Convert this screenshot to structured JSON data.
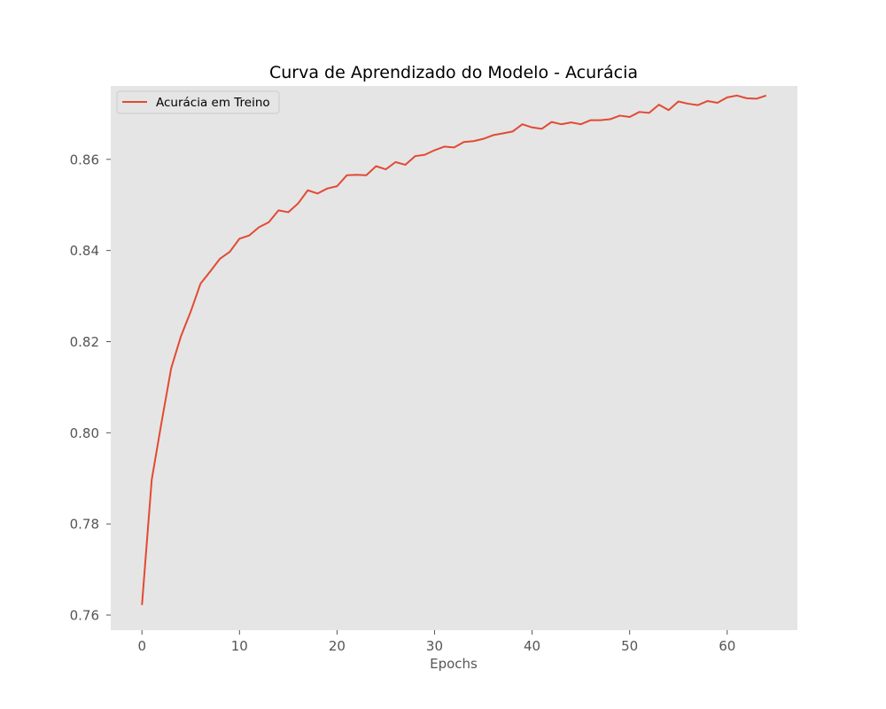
{
  "chart_data": {
    "type": "line",
    "title": "Curva de Aprendizado do Modelo - Acurácia",
    "xlabel": "Epochs",
    "ylabel": "",
    "xlim": [
      -3.2,
      67.2
    ],
    "ylim": [
      0.7567,
      0.8761
    ],
    "xticks": [
      0,
      10,
      20,
      30,
      40,
      50,
      60
    ],
    "xtick_labels": [
      "0",
      "10",
      "20",
      "30",
      "40",
      "50",
      "60"
    ],
    "yticks": [
      0.76,
      0.78,
      0.8,
      0.82,
      0.84,
      0.86
    ],
    "ytick_labels": [
      "0.76",
      "0.78",
      "0.80",
      "0.82",
      "0.84",
      "0.86"
    ],
    "grid": false,
    "legend_position": "top-left",
    "series": [
      {
        "name": "Acurácia em Treino",
        "color": "#E24A33",
        "x": [
          0,
          1,
          2,
          3,
          4,
          5,
          6,
          7,
          8,
          9,
          10,
          11,
          12,
          13,
          14,
          15,
          16,
          17,
          18,
          19,
          20,
          21,
          22,
          23,
          24,
          25,
          26,
          27,
          28,
          29,
          30,
          31,
          32,
          33,
          34,
          35,
          36,
          37,
          38,
          39,
          40,
          41,
          42,
          43,
          44,
          45,
          46,
          47,
          48,
          49,
          50,
          51,
          52,
          53,
          54,
          55,
          56,
          57,
          58,
          59,
          60,
          61,
          62,
          63,
          64
        ],
        "y": [
          0.7622,
          0.7897,
          0.8022,
          0.8142,
          0.8212,
          0.8266,
          0.8327,
          0.8354,
          0.8382,
          0.8397,
          0.8426,
          0.8433,
          0.8451,
          0.8462,
          0.8488,
          0.8484,
          0.8503,
          0.8532,
          0.8525,
          0.8536,
          0.8541,
          0.8565,
          0.8566,
          0.8565,
          0.8585,
          0.8578,
          0.8594,
          0.8588,
          0.8607,
          0.861,
          0.862,
          0.8628,
          0.8626,
          0.8638,
          0.864,
          0.8645,
          0.8653,
          0.8657,
          0.8661,
          0.8677,
          0.867,
          0.8667,
          0.8682,
          0.8677,
          0.8681,
          0.8677,
          0.8686,
          0.8686,
          0.8688,
          0.8696,
          0.8693,
          0.8704,
          0.8702,
          0.872,
          0.8708,
          0.8727,
          0.8722,
          0.8719,
          0.8728,
          0.8724,
          0.8736,
          0.874,
          0.8734,
          0.8733,
          0.874
        ]
      }
    ]
  }
}
